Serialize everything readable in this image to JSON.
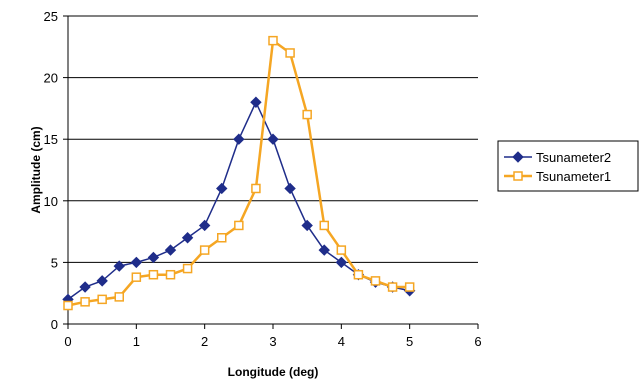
{
  "chart_data": {
    "type": "line",
    "title": "",
    "xlabel": "Longitude (deg)",
    "ylabel": "Amplitude (cm)",
    "xlim": [
      0,
      6
    ],
    "ylim": [
      0,
      25
    ],
    "xticks": [
      0,
      1,
      2,
      3,
      4,
      5,
      6
    ],
    "yticks": [
      0,
      5,
      10,
      15,
      20,
      25
    ],
    "grid": "horizontal",
    "legend_position": "right",
    "series": [
      {
        "name": "Tsunameter2",
        "color": "#1f2d8a",
        "marker": "diamond",
        "x": [
          0,
          0.25,
          0.5,
          0.75,
          1.0,
          1.25,
          1.5,
          1.75,
          2.0,
          2.25,
          2.5,
          2.75,
          3.0,
          3.25,
          3.5,
          3.75,
          4.0,
          4.25,
          4.5,
          4.75,
          5.0
        ],
        "values": [
          2.0,
          3.0,
          3.5,
          4.7,
          5.0,
          5.4,
          6.0,
          7.0,
          8.0,
          11.0,
          15.0,
          18.0,
          15.0,
          11.0,
          8.0,
          6.0,
          5.0,
          4.0,
          3.4,
          3.0,
          2.7
        ]
      },
      {
        "name": "Tsunameter1",
        "color": "#f5a623",
        "marker": "square-open",
        "x": [
          0,
          0.25,
          0.5,
          0.75,
          1.0,
          1.25,
          1.5,
          1.75,
          2.0,
          2.25,
          2.5,
          2.75,
          3.0,
          3.25,
          3.5,
          3.75,
          4.0,
          4.25,
          4.5,
          4.75,
          5.0
        ],
        "values": [
          1.5,
          1.8,
          2.0,
          2.2,
          3.8,
          4.0,
          4.0,
          4.5,
          6.0,
          7.0,
          8.0,
          11.0,
          23.0,
          22.0,
          17.0,
          8.0,
          6.0,
          4.0,
          3.5,
          3.0,
          3.0
        ]
      }
    ]
  }
}
